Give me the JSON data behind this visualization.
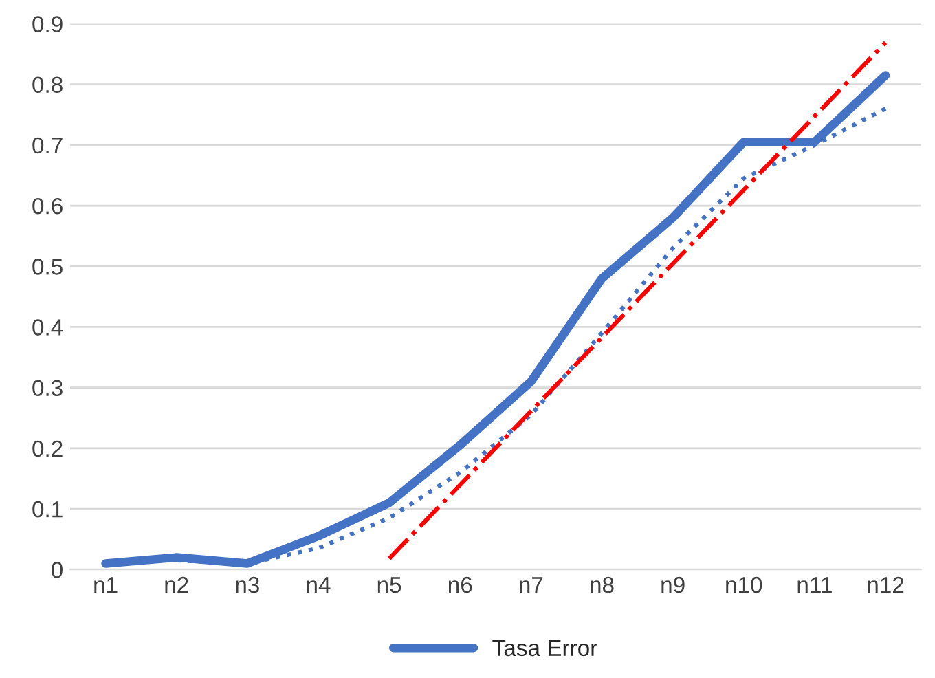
{
  "chart_data": {
    "type": "line",
    "categories": [
      "n1",
      "n2",
      "n3",
      "n4",
      "n5",
      "n6",
      "n7",
      "n8",
      "n9",
      "n10",
      "n11",
      "n12"
    ],
    "series": [
      {
        "name": "Tasa Error",
        "color": "#4472c4",
        "line_style": "solid",
        "values": [
          0.01,
          0.02,
          0.01,
          0.055,
          0.11,
          0.205,
          0.31,
          0.48,
          0.58,
          0.705,
          0.705,
          0.815
        ]
      },
      {
        "color": "#4472c4",
        "line_style": "dotted",
        "x": [
          "n2",
          "n3",
          "n4",
          "n5",
          "n6",
          "n7",
          "n8",
          "n9",
          "n10",
          "n11",
          "n12"
        ],
        "values": [
          0.015,
          0.01,
          0.035,
          0.085,
          0.16,
          0.255,
          0.39,
          0.53,
          0.645,
          0.7,
          0.76
        ]
      },
      {
        "color": "#ff0000",
        "line_style": "dashdot",
        "x": [
          "n5",
          "n12"
        ],
        "values": [
          0.018,
          0.869
        ]
      }
    ],
    "ylim": [
      0,
      0.9
    ],
    "yticks": [
      {
        "value": 0,
        "label": "0"
      },
      0.1,
      0.2,
      0.3,
      0.4,
      0.5,
      0.6,
      0.7,
      0.8,
      0.9
    ],
    "grid": "y",
    "legend": "bottom"
  }
}
